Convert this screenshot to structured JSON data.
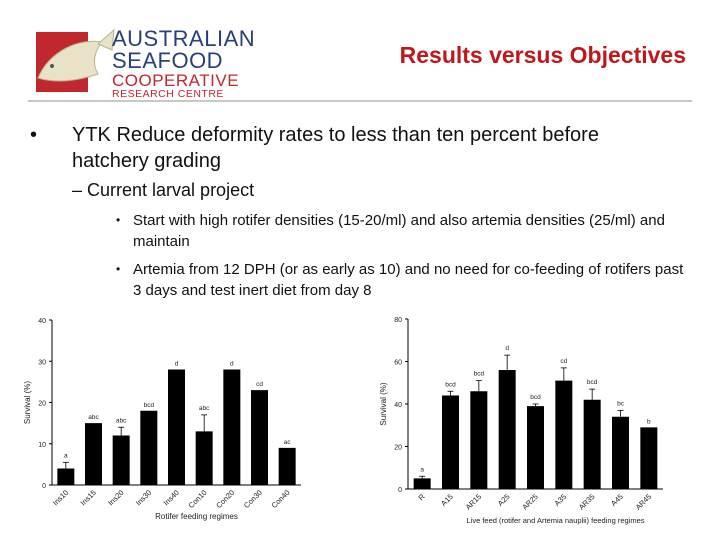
{
  "header": {
    "logo_lines": [
      "AUSTRALIAN",
      "SEAFOOD",
      "COOPERATIVE",
      "RESEARCH CENTRE"
    ],
    "title": "Results versus Objectives"
  },
  "bullets": {
    "level1": "YTK  Reduce deformity rates to less than ten percent before hatchery grading",
    "level2": "Current larval project",
    "level3": [
      "Start with high rotifer densities (15-20/ml) and also artemia densities (25/ml) and maintain",
      "Artemia from 12 DPH (or as early as 10) and no need for co-feeding of rotifers past 3 days and test inert diet from day 8"
    ]
  },
  "colors": {
    "title": "#c0171d",
    "logo_blue": "#2a3f7a",
    "logo_red": "#c2272d",
    "bar": "#000000"
  },
  "chart_data": [
    {
      "type": "bar",
      "title": "",
      "xlabel": "Rotifer feeding regimes",
      "ylabel": "Survival (%)",
      "ylim": [
        0,
        40
      ],
      "yticks": [
        0,
        10,
        20,
        30,
        40
      ],
      "categories": [
        "Ins10",
        "Ins15",
        "Ins20",
        "Ins30",
        "Ins40",
        "Con10",
        "Con20",
        "Con30",
        "Con40"
      ],
      "values": [
        4,
        15,
        12,
        18,
        28,
        13,
        28,
        23,
        9
      ],
      "errors": [
        1.5,
        0,
        2,
        0,
        0,
        4,
        0,
        0,
        0
      ],
      "letters": [
        "a",
        "abc",
        "abc",
        "bcd",
        "d",
        "abc",
        "d",
        "cd",
        "ac"
      ]
    },
    {
      "type": "bar",
      "title": "",
      "xlabel": "Live feed (rotifer and Artemia nauplii) feeding regimes",
      "ylabel": "Survival (%)",
      "ylim": [
        0,
        80
      ],
      "yticks": [
        0,
        20,
        40,
        60,
        80
      ],
      "categories": [
        "R",
        "A15",
        "AR15",
        "A25",
        "AR25",
        "A35",
        "AR35",
        "A45",
        "AR45"
      ],
      "values": [
        5,
        44,
        46,
        56,
        39,
        51,
        42,
        34,
        29
      ],
      "errors": [
        1,
        2,
        5,
        7,
        1,
        6,
        5,
        3,
        0
      ],
      "letters": [
        "a",
        "bcd",
        "bcd",
        "d",
        "bcd",
        "cd",
        "bcd",
        "bc",
        "b"
      ]
    }
  ]
}
